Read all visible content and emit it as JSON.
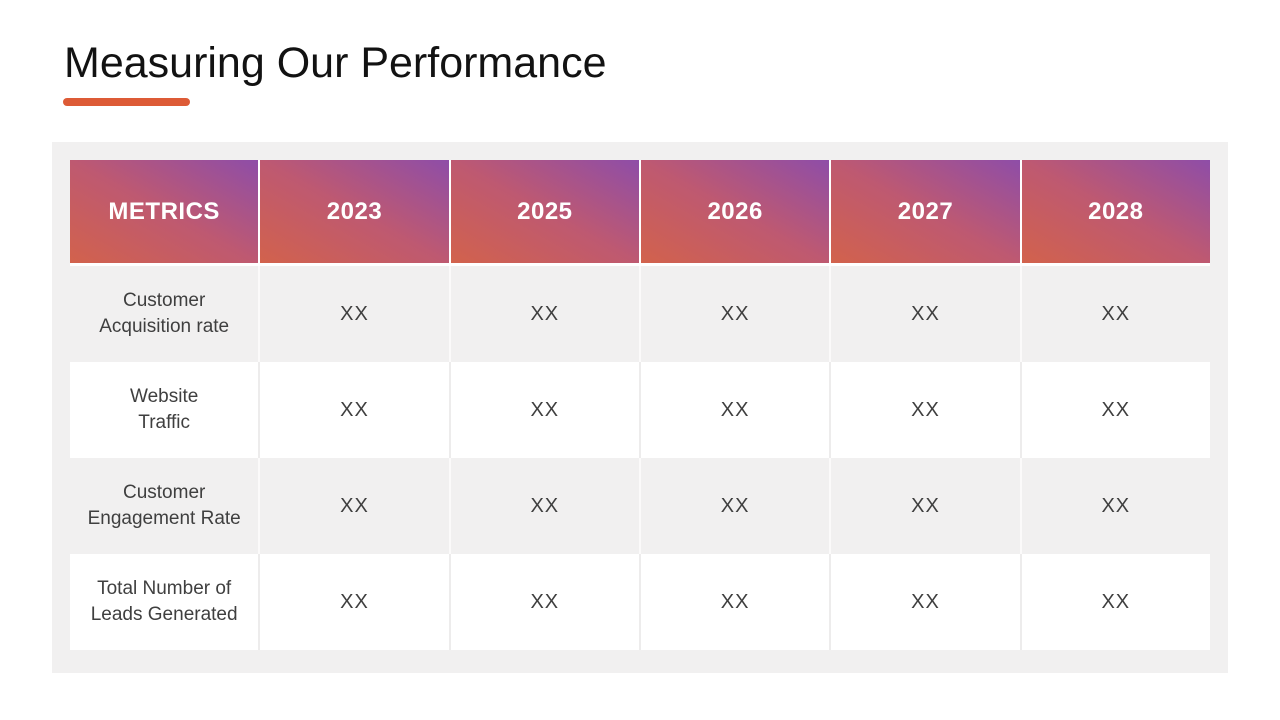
{
  "slide": {
    "title": "Measuring Our Performance",
    "background_color": "#FFFFFF",
    "accent_underline_color": "#DD5B36",
    "title_color": "#121212"
  },
  "table": {
    "panel_background": "#F1F0F0",
    "body_text_color": "#3F3F3F",
    "header": {
      "text_color": "#FFFFFF",
      "gradient_from": "#D2624C",
      "gradient_mid": "#BE5971",
      "gradient_to": "#8E4DA8"
    },
    "columns": [
      "METRICS",
      "2023",
      "2025",
      "2026",
      "2027",
      "2028"
    ],
    "rows": [
      {
        "metric": "Customer\nAcquisition rate",
        "values": [
          "XX",
          "XX",
          "XX",
          "XX",
          "XX"
        ]
      },
      {
        "metric": "Website\nTraffic",
        "values": [
          "XX",
          "XX",
          "XX",
          "XX",
          "XX"
        ]
      },
      {
        "metric": "Customer\nEngagement Rate",
        "values": [
          "XX",
          "XX",
          "XX",
          "XX",
          "XX"
        ]
      },
      {
        "metric": "Total Number of\nLeads Generated",
        "values": [
          "XX",
          "XX",
          "XX",
          "XX",
          "XX"
        ]
      }
    ]
  }
}
